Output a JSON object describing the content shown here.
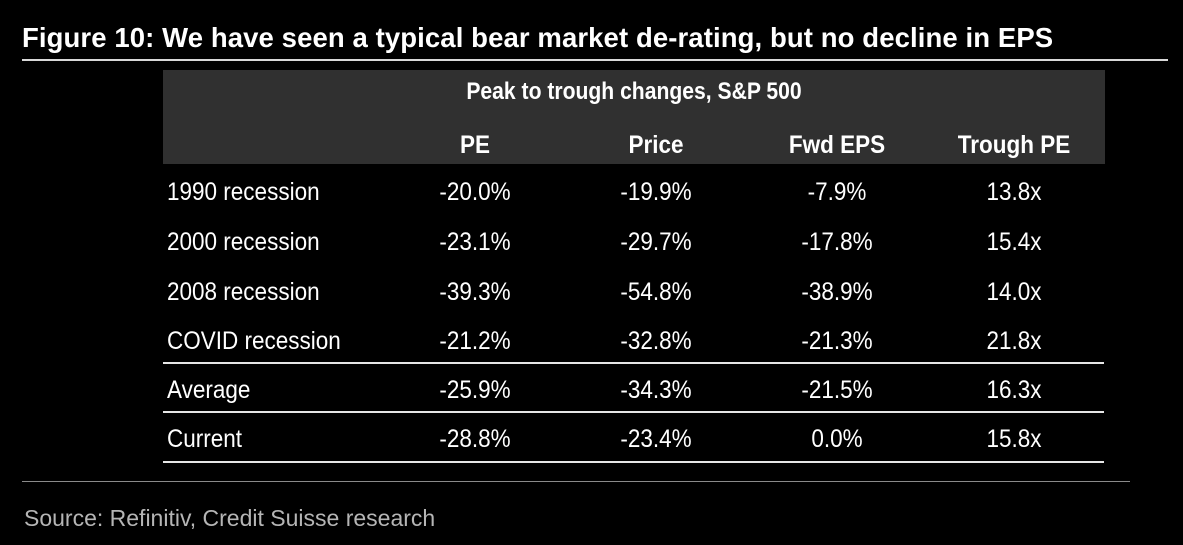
{
  "figure": {
    "title": "Figure 10: We have seen a typical bear market de-rating, but no decline in EPS"
  },
  "table": {
    "header_title": "Peak to trough changes, S&P 500",
    "columns": [
      "PE",
      "Price",
      "Fwd EPS",
      "Trough PE"
    ],
    "rows": [
      {
        "label": "1990 recession",
        "values": [
          "-20.0%",
          "-19.9%",
          "-7.9%",
          "13.8x"
        ]
      },
      {
        "label": "2000 recession",
        "values": [
          "-23.1%",
          "-29.7%",
          "-17.8%",
          "15.4x"
        ]
      },
      {
        "label": "2008 recession",
        "values": [
          "-39.3%",
          "-54.8%",
          "-38.9%",
          "14.0x"
        ]
      },
      {
        "label": "COVID recession",
        "values": [
          "-21.2%",
          "-32.8%",
          "-21.3%",
          "21.8x"
        ]
      },
      {
        "label": "Average",
        "values": [
          "-25.9%",
          "-34.3%",
          "-21.5%",
          "16.3x"
        ]
      },
      {
        "label": "Current",
        "values": [
          "-28.8%",
          "-23.4%",
          "0.0%",
          "15.8x"
        ]
      }
    ]
  },
  "source": "Source: Refinitiv, Credit Suisse research",
  "colors": {
    "background": "#000000",
    "header_band": "#303030",
    "text": "#ffffff",
    "source_text": "#b5b5b5"
  }
}
